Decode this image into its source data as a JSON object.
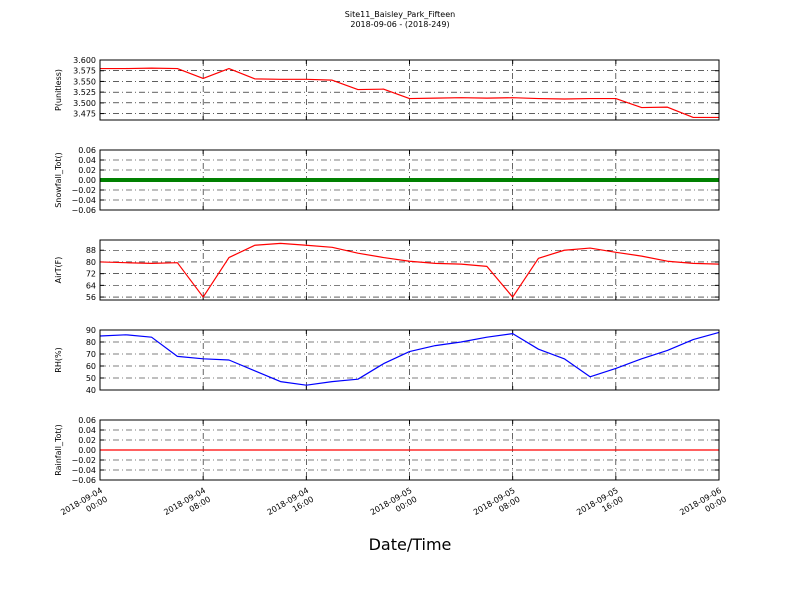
{
  "title": "Site11_Baisley_Park_Fifteen",
  "subtitle": "2018-09-06 - (2018-249)",
  "x_label": "Date/Time",
  "chart_data": [
    {
      "type": "line",
      "y_label": "P(unitless)",
      "color": "#ff0000",
      "grid": true,
      "x": [
        "2018-09-04 00:00",
        "2018-09-04 02:00",
        "2018-09-04 04:00",
        "2018-09-04 06:00",
        "2018-09-04 08:00",
        "2018-09-04 10:00",
        "2018-09-04 12:00",
        "2018-09-04 14:00",
        "2018-09-04 16:00",
        "2018-09-04 18:00",
        "2018-09-04 20:00",
        "2018-09-04 22:00",
        "2018-09-05 00:00",
        "2018-09-05 02:00",
        "2018-09-05 04:00",
        "2018-09-05 06:00",
        "2018-09-05 08:00",
        "2018-09-05 10:00",
        "2018-09-05 12:00",
        "2018-09-05 14:00",
        "2018-09-05 16:00",
        "2018-09-05 18:00",
        "2018-09-05 20:00",
        "2018-09-05 22:00",
        "2018-09-06 00:00"
      ],
      "values": [
        3.58,
        3.58,
        3.581,
        3.58,
        3.557,
        3.58,
        3.556,
        3.555,
        3.555,
        3.553,
        3.531,
        3.532,
        3.51,
        3.511,
        3.512,
        3.511,
        3.512,
        3.51,
        3.509,
        3.51,
        3.51,
        3.489,
        3.49,
        3.466,
        3.466
      ],
      "xlim": [
        "2018-09-04 00:00",
        "2018-09-06 00:00"
      ],
      "ylim": [
        3.46,
        3.6
      ],
      "yticks": [
        3.475,
        {
          "value": 3.5,
          "label": "3.500"
        },
        3.525,
        {
          "value": 3.55,
          "label": "3.550"
        },
        3.575,
        {
          "value": 3.6,
          "label": "3.600"
        }
      ]
    },
    {
      "type": "line",
      "y_label": "Snowfall_Tot()",
      "color": "#008000",
      "grid": true,
      "markers": true,
      "x": [
        "2018-09-04 00:00",
        "2018-09-04 02:00",
        "2018-09-04 04:00",
        "2018-09-04 06:00",
        "2018-09-04 08:00",
        "2018-09-04 10:00",
        "2018-09-04 12:00",
        "2018-09-04 14:00",
        "2018-09-04 16:00",
        "2018-09-04 18:00",
        "2018-09-04 20:00",
        "2018-09-04 22:00",
        "2018-09-05 00:00",
        "2018-09-05 02:00",
        "2018-09-05 04:00",
        "2018-09-05 06:00",
        "2018-09-05 08:00",
        "2018-09-05 10:00",
        "2018-09-05 12:00",
        "2018-09-05 14:00",
        "2018-09-05 16:00",
        "2018-09-05 18:00",
        "2018-09-05 20:00",
        "2018-09-05 22:00",
        "2018-09-06 00:00"
      ],
      "values": [
        0,
        0,
        0,
        0,
        0,
        0,
        0,
        0,
        0,
        0,
        0,
        0,
        0,
        0,
        0,
        0,
        0,
        0,
        0,
        0,
        0,
        0,
        0,
        0,
        0
      ],
      "xlim": [
        "2018-09-04 00:00",
        "2018-09-06 00:00"
      ],
      "ylim": [
        -0.06,
        0.06
      ],
      "yticks": [
        {
          "value": -0.06,
          "label": "−0.06"
        },
        {
          "value": -0.04,
          "label": "−0.04"
        },
        {
          "value": -0.02,
          "label": "−0.02"
        },
        {
          "value": 0,
          "label": "0.00"
        },
        0.02,
        0.04,
        0.06
      ]
    },
    {
      "type": "line",
      "y_label": "AirT(F)",
      "color": "#ff0000",
      "grid": true,
      "x": [
        "2018-09-04 00:00",
        "2018-09-04 02:00",
        "2018-09-04 04:00",
        "2018-09-04 06:00",
        "2018-09-04 08:00",
        "2018-09-04 10:00",
        "2018-09-04 12:00",
        "2018-09-04 14:00",
        "2018-09-04 16:00",
        "2018-09-04 18:00",
        "2018-09-04 20:00",
        "2018-09-04 22:00",
        "2018-09-05 00:00",
        "2018-09-05 02:00",
        "2018-09-05 04:00",
        "2018-09-05 06:00",
        "2018-09-05 08:00",
        "2018-09-05 10:00",
        "2018-09-05 12:00",
        "2018-09-05 14:00",
        "2018-09-05 16:00",
        "2018-09-05 18:00",
        "2018-09-05 20:00",
        "2018-09-05 22:00",
        "2018-09-06 00:00"
      ],
      "values": [
        80,
        79.5,
        79,
        79.5,
        56,
        83,
        91.4,
        92.7,
        91.4,
        90,
        86,
        83,
        80.5,
        79,
        78.5,
        77,
        56,
        82.5,
        88,
        89.5,
        86.6,
        84,
        80.5,
        79,
        78.5
      ],
      "xlim": [
        "2018-09-04 00:00",
        "2018-09-06 00:00"
      ],
      "ylim": [
        54,
        95
      ],
      "yticks": [
        56,
        64,
        72,
        80,
        88
      ]
    },
    {
      "type": "line",
      "y_label": "RH(%)",
      "color": "#0000ff",
      "grid": true,
      "x": [
        "2018-09-04 00:00",
        "2018-09-04 02:00",
        "2018-09-04 04:00",
        "2018-09-04 06:00",
        "2018-09-04 08:00",
        "2018-09-04 10:00",
        "2018-09-04 12:00",
        "2018-09-04 14:00",
        "2018-09-04 16:00",
        "2018-09-04 18:00",
        "2018-09-04 20:00",
        "2018-09-04 22:00",
        "2018-09-05 00:00",
        "2018-09-05 02:00",
        "2018-09-05 04:00",
        "2018-09-05 06:00",
        "2018-09-05 08:00",
        "2018-09-05 10:00",
        "2018-09-05 12:00",
        "2018-09-05 14:00",
        "2018-09-05 16:00",
        "2018-09-05 18:00",
        "2018-09-05 20:00",
        "2018-09-05 22:00",
        "2018-09-06 00:00"
      ],
      "values": [
        85,
        86,
        84,
        68,
        66,
        65,
        56,
        47,
        44,
        47,
        49,
        62,
        72,
        77,
        80,
        84,
        87,
        74,
        66,
        51,
        58,
        66,
        73,
        82,
        88
      ],
      "xlim": [
        "2018-09-04 00:00",
        "2018-09-06 00:00"
      ],
      "ylim": [
        40,
        90
      ],
      "yticks": [
        40,
        50,
        60,
        70,
        80,
        90
      ]
    },
    {
      "type": "line",
      "y_label": "Rainfall_Tot()",
      "color": "#ff0000",
      "grid": true,
      "x": [
        "2018-09-04 00:00",
        "2018-09-04 02:00",
        "2018-09-04 04:00",
        "2018-09-04 06:00",
        "2018-09-04 08:00",
        "2018-09-04 10:00",
        "2018-09-04 12:00",
        "2018-09-04 14:00",
        "2018-09-04 16:00",
        "2018-09-04 18:00",
        "2018-09-04 20:00",
        "2018-09-04 22:00",
        "2018-09-05 00:00",
        "2018-09-05 02:00",
        "2018-09-05 04:00",
        "2018-09-05 06:00",
        "2018-09-05 08:00",
        "2018-09-05 10:00",
        "2018-09-05 12:00",
        "2018-09-05 14:00",
        "2018-09-05 16:00",
        "2018-09-05 18:00",
        "2018-09-05 20:00",
        "2018-09-05 22:00",
        "2018-09-06 00:00"
      ],
      "values": [
        0,
        0,
        0,
        0,
        0,
        0,
        0,
        0,
        0,
        0,
        0,
        0,
        0,
        0,
        0,
        0,
        0,
        0,
        0,
        0,
        0,
        0,
        0,
        0,
        0
      ],
      "xlim": [
        "2018-09-04 00:00",
        "2018-09-06 00:00"
      ],
      "ylim": [
        -0.06,
        0.06
      ],
      "yticks": [
        {
          "value": -0.06,
          "label": "−0.06"
        },
        {
          "value": -0.04,
          "label": "−0.04"
        },
        {
          "value": -0.02,
          "label": "−0.02"
        },
        {
          "value": 0,
          "label": "0.00"
        },
        0.02,
        0.04,
        0.06
      ],
      "xticks": [
        "2018-09-04 00:00",
        "2018-09-04 08:00",
        "2018-09-04 16:00",
        "2018-09-05 00:00",
        "2018-09-05 08:00",
        "2018-09-05 16:00",
        "2018-09-06 00:00"
      ]
    }
  ]
}
